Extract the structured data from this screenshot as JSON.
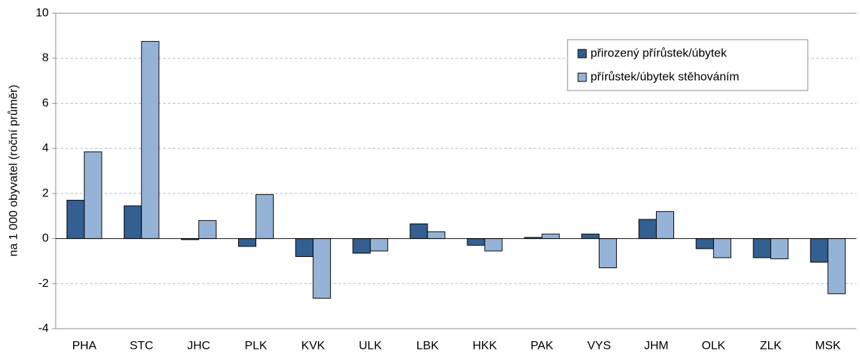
{
  "chart_data": {
    "type": "bar",
    "y_label": "na 1 000 obyvatel (roční průměr)",
    "categories": [
      "PHA",
      "STC",
      "JHC",
      "PLK",
      "KVK",
      "ULK",
      "LBK",
      "HKK",
      "PAK",
      "VYS",
      "JHM",
      "OLK",
      "ZLK",
      "MSK"
    ],
    "series": [
      {
        "name": "přirozený přírůstek/úbytek",
        "color": "#335f91",
        "values": [
          1.7,
          1.45,
          -0.05,
          -0.35,
          -0.8,
          -0.65,
          0.65,
          -0.3,
          0.05,
          0.2,
          0.85,
          -0.45,
          -0.85,
          -1.05
        ]
      },
      {
        "name": "přírůstek/úbytek stěhováním",
        "color": "#95b3d7",
        "values": [
          3.85,
          8.75,
          0.8,
          1.95,
          -2.65,
          -0.55,
          0.3,
          -0.55,
          0.2,
          -1.3,
          1.2,
          -0.85,
          -0.9,
          -2.45
        ]
      }
    ],
    "ylim": [
      -4,
      10
    ],
    "yticks": [
      -4,
      -2,
      0,
      2,
      4,
      6,
      8,
      10
    ],
    "grid": true,
    "legend": "upper right"
  }
}
